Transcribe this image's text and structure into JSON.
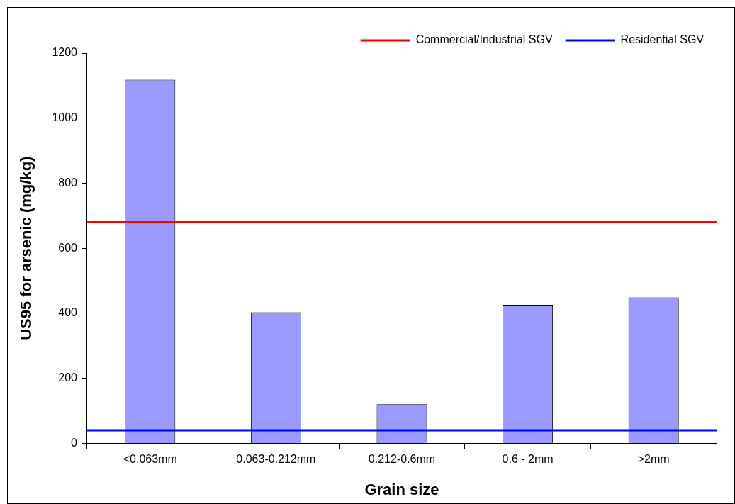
{
  "chart_data": {
    "type": "bar",
    "xlabel": "Grain size",
    "ylabel": "US95 for arsenic (mg/kg)",
    "categories": [
      "<0.063mm",
      "0.063-0.212mm",
      "0.212-0.6mm",
      "0.6 - 2mm",
      ">2mm"
    ],
    "values": [
      1118,
      403,
      120,
      426,
      449
    ],
    "color": "#9999ff",
    "ylim": [
      0,
      1200
    ],
    "yticks": [
      0,
      200,
      400,
      600,
      800,
      1000,
      1200
    ],
    "grid": false,
    "legend": "top right",
    "ref_lines": [
      {
        "axis": "y",
        "value": 680,
        "label": "Commercial/Industrial SGV",
        "color": "#ff0000"
      },
      {
        "axis": "y",
        "value": 40,
        "label": "Residential SGV",
        "color": "#0000ff"
      }
    ]
  }
}
